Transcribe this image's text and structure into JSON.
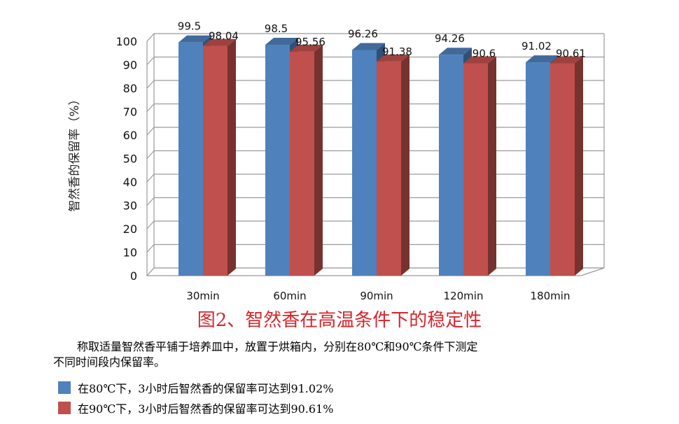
{
  "chart_data": {
    "type": "bar",
    "categories": [
      "30min",
      "60min",
      "90min",
      "120min",
      "180min"
    ],
    "series": [
      {
        "values": [
          99.5,
          98.5,
          96.26,
          94.26,
          91.02
        ],
        "color": "#4f81bd"
      },
      {
        "values": [
          98.04,
          95.56,
          91.38,
          90.6,
          90.61
        ],
        "color": "#c0504d"
      }
    ],
    "data_labels": [
      [
        "99.5",
        "98.5",
        "96.26",
        "94.26",
        "91.02"
      ],
      [
        "98.04",
        "95.56",
        "91.38",
        "90.6",
        "90.61"
      ]
    ],
    "ylabel": "智然香的保留率（%）",
    "ylim": [
      0,
      100
    ],
    "yticks": [
      0,
      10,
      20,
      30,
      40,
      50,
      60,
      70,
      80,
      90,
      100
    ],
    "grid": true,
    "style": "3d-clustered-column"
  },
  "caption": "图2、智然香在高温条件下的稳定性",
  "description": {
    "line1": "称取适量智然香平铺于培养皿中，放置于烘箱内，分别在80℃和90℃条件下测定",
    "line2": "不同时间段内保留率。"
  },
  "legend": [
    {
      "text": "在80℃下，3小时后智然香的保留率可达到91.02%",
      "color": "#4f81bd"
    },
    {
      "text": "在90℃下，3小时后智然香的保留率可达到90.61%",
      "color": "#c0504d"
    }
  ]
}
